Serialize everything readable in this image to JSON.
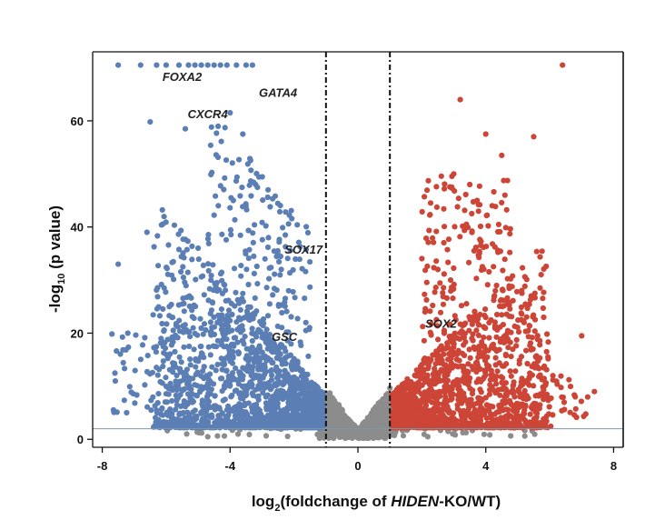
{
  "chart_data": {
    "type": "scatter",
    "title": "",
    "xlabel_parts": {
      "prefix": "log",
      "subscript": "2",
      "main": "(foldchange of ",
      "italic": "HIDEN",
      "suffix": "-KO/WT)"
    },
    "ylabel_parts": {
      "prefix": "-log",
      "subscript": "10",
      "suffix": " (p value)"
    },
    "xlim": [
      -8.3,
      8.3
    ],
    "ylim": [
      -1.5,
      73
    ],
    "xticks": [
      "-8",
      "-4",
      "0",
      "4",
      "8"
    ],
    "yticks": [
      "0",
      "20",
      "40",
      "60"
    ],
    "fc_thresholds": [
      -1,
      1
    ],
    "p_threshold": 2,
    "grid": false,
    "legend": "none",
    "colors": {
      "down": "#5b7fb5",
      "up": "#cc4536",
      "ns": "#8c8c8c",
      "threshold_line": "#7a97b0"
    },
    "series": [
      {
        "values_summary": "downregulated",
        "x": [
          -7.5,
          -6.8,
          -6.3,
          -6.0,
          -5.6,
          -5.3,
          -5.1,
          -4.9,
          -4.7,
          -4.5,
          -4.3,
          -4.1,
          -3.8,
          -3.5,
          -3.3,
          -6.5,
          -5.4,
          -4.0,
          -3.6,
          -7.5,
          -6.6,
          -5.0,
          -4.6,
          -3.9,
          -3.2,
          -2.8,
          -2.4,
          -7.2,
          -5.9,
          -4.4
        ],
        "y": [
          70.5,
          70.5,
          70.5,
          70.5,
          70.5,
          70.5,
          70.5,
          70.5,
          70.5,
          70.5,
          70.5,
          70.5,
          70.5,
          70.5,
          70.5,
          59.8,
          58.5,
          61.5,
          57.5,
          33,
          39,
          36,
          30,
          45,
          48,
          38,
          32,
          20,
          25,
          22
        ]
      },
      {
        "values_summary": "upregulated",
        "x": [
          6.4,
          3.2,
          4.0,
          4.5,
          5.5,
          3.0,
          3.5,
          4.2,
          4.6,
          5.7,
          7.0,
          2.5,
          2.9,
          3.8,
          4.3,
          5.2,
          6.1,
          6.8,
          7.4,
          2.1,
          2.7,
          3.1
        ],
        "y": [
          70.5,
          64,
          57.5,
          53.5,
          57,
          50,
          48,
          44,
          46,
          28.5,
          19.5,
          32,
          30,
          35,
          28,
          22,
          12,
          8,
          9,
          24,
          20,
          16
        ]
      }
    ],
    "annotations": [
      {
        "text": "FOXA2",
        "x": -5.5,
        "y": 67.5
      },
      {
        "text": "GATA4",
        "x": -2.5,
        "y": 64.5
      },
      {
        "text": "CXCR4",
        "x": -4.7,
        "y": 60.5
      },
      {
        "text": "SOX17",
        "x": -1.7,
        "y": 35
      },
      {
        "text": "GSC",
        "x": -2.3,
        "y": 18.5
      },
      {
        "text": "SOX2",
        "x": 2.6,
        "y": 21
      }
    ]
  }
}
